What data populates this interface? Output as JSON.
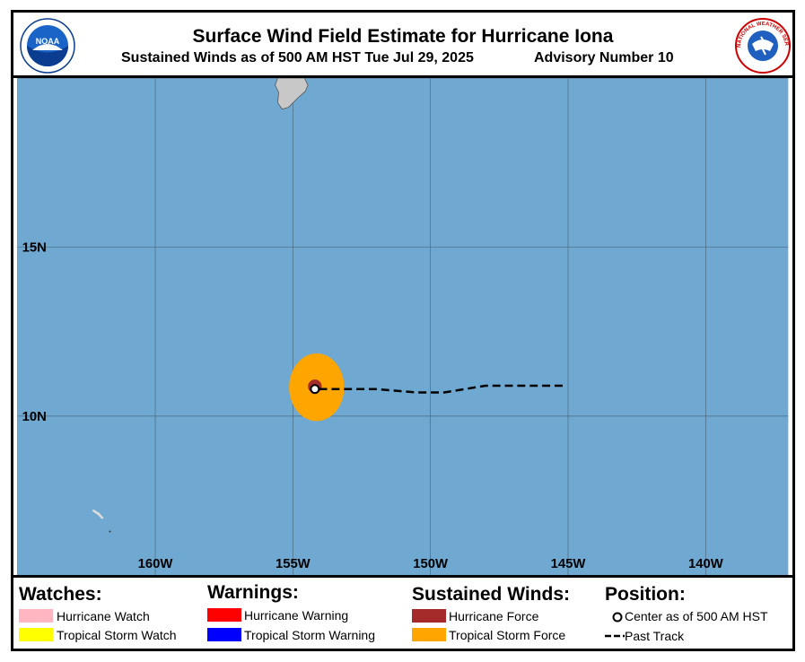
{
  "header": {
    "title": "Surface Wind Field Estimate for Hurricane Iona",
    "subtitle": "Sustained Winds as of 500 AM HST Tue Jul 29, 2025",
    "advisory": "Advisory Number 10",
    "left_logo_text": "NOAA",
    "right_logo_text": "NATIONAL WEATHER SERVICE"
  },
  "map": {
    "ocean_color": "#6fa8d0",
    "land_color": "#c8c8c8",
    "grid_color": "#4a6a80",
    "lat_labels": [
      "15N",
      "10N"
    ],
    "lon_labels": [
      "160W",
      "155W",
      "150W",
      "145W",
      "140W"
    ],
    "lon_range": [
      -165,
      -137
    ],
    "lat_range": [
      5.3,
      20
    ],
    "storm": {
      "name": "Iona",
      "center": {
        "lon": -154.2,
        "lat": 10.8
      },
      "tropical_storm_force_radius_deg": 1.0,
      "hurricane_force_radius_deg": 0.25,
      "tropical_storm_force_color": "#ffa500",
      "hurricane_force_color": "#a52a2a",
      "past_track": [
        {
          "lon": -145.2,
          "lat": 10.9
        },
        {
          "lon": -146.5,
          "lat": 10.9
        },
        {
          "lon": -148.0,
          "lat": 10.9
        },
        {
          "lon": -149.5,
          "lat": 10.7
        },
        {
          "lon": -150.5,
          "lat": 10.7
        },
        {
          "lon": -152.0,
          "lat": 10.8
        },
        {
          "lon": -153.5,
          "lat": 10.8
        },
        {
          "lon": -154.2,
          "lat": 10.8
        }
      ]
    }
  },
  "legend": {
    "watches": {
      "heading": "Watches:",
      "items": [
        {
          "label": "Hurricane Watch",
          "color": "#ffb6c1"
        },
        {
          "label": "Tropical Storm Watch",
          "color": "#ffff00"
        }
      ]
    },
    "warnings": {
      "heading": "Warnings:",
      "items": [
        {
          "label": "Hurricane Warning",
          "color": "#ff0000"
        },
        {
          "label": "Tropical Storm Warning",
          "color": "#0000ff"
        }
      ]
    },
    "winds": {
      "heading": "Sustained Winds:",
      "items": [
        {
          "label": "Hurricane Force",
          "color": "#a52a2a"
        },
        {
          "label": "Tropical Storm Force",
          "color": "#ffa500"
        }
      ]
    },
    "position": {
      "heading": "Position:",
      "center_label": "Center as of 500 AM HST",
      "track_label": "Past Track"
    }
  }
}
